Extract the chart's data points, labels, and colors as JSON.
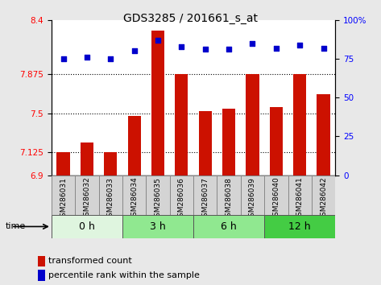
{
  "title": "GDS3285 / 201661_s_at",
  "samples": [
    "GSM286031",
    "GSM286032",
    "GSM286033",
    "GSM286034",
    "GSM286035",
    "GSM286036",
    "GSM286037",
    "GSM286038",
    "GSM286039",
    "GSM286040",
    "GSM286041",
    "GSM286042"
  ],
  "bar_values": [
    7.125,
    7.22,
    7.125,
    7.47,
    8.3,
    7.875,
    7.52,
    7.54,
    7.875,
    7.56,
    7.875,
    7.68
  ],
  "dot_values": [
    75,
    76,
    75,
    80,
    87,
    83,
    81,
    81,
    85,
    82,
    84,
    82
  ],
  "time_groups": [
    {
      "label": "0 h",
      "start": 0,
      "end": 3,
      "color": "#dff5df"
    },
    {
      "label": "3 h",
      "start": 3,
      "end": 6,
      "color": "#90e890"
    },
    {
      "label": "6 h",
      "start": 6,
      "end": 9,
      "color": "#90e890"
    },
    {
      "label": "12 h",
      "start": 9,
      "end": 12,
      "color": "#44cc44"
    }
  ],
  "ylim_left": [
    6.9,
    8.4
  ],
  "ylim_right": [
    0,
    100
  ],
  "yticks_left": [
    6.9,
    7.125,
    7.5,
    7.875,
    8.4
  ],
  "ytick_labels_left": [
    "6.9",
    "7.125",
    "7.5",
    "7.875",
    "8.4"
  ],
  "yticks_right": [
    0,
    25,
    50,
    75,
    100
  ],
  "ytick_labels_right": [
    "0",
    "25",
    "50",
    "75",
    "100%"
  ],
  "hlines": [
    7.125,
    7.5,
    7.875
  ],
  "bar_color": "#cc1100",
  "dot_color": "#0000cc",
  "bg_color": "#e8e8e8",
  "plot_bg": "#ffffff",
  "title_fontsize": 10,
  "tick_fontsize": 7.5,
  "label_fontsize": 6.5,
  "time_fontsize": 9,
  "legend_fontsize": 8
}
